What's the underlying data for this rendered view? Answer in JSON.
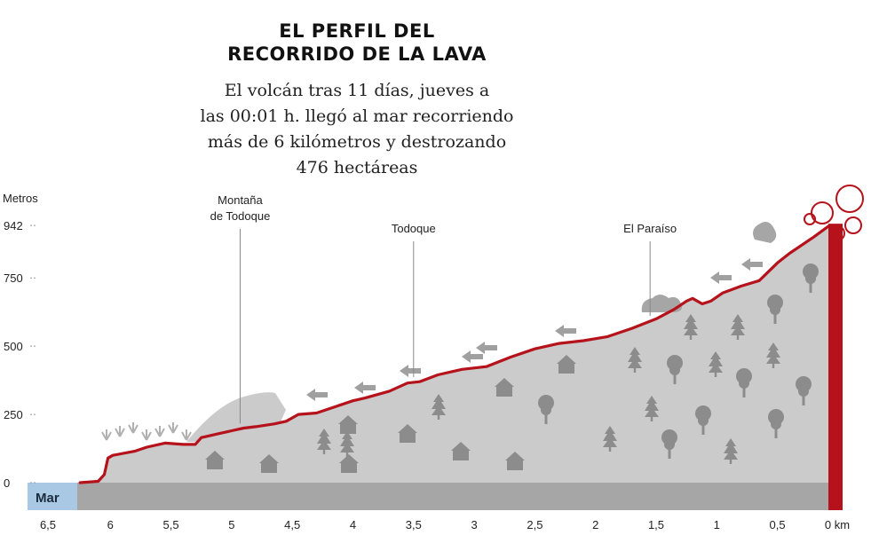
{
  "header": {
    "title_line1": "EL PERFIL DEL",
    "title_line2": "RECORRIDO DE LA LAVA",
    "subtitle_lines": [
      "El volcán tras 11 días, jueves a",
      "las 00:01 h. llegó al mar recorriendo",
      "más de 6 kilómetros y destrozando",
      "476 hectáreas"
    ]
  },
  "chart_data": {
    "type": "area",
    "xlabel": "km",
    "ylabel": "Metros",
    "x_reversed": true,
    "xlim": [
      6.5,
      0
    ],
    "ylim": [
      0,
      942
    ],
    "x_ticks": [
      "6,5",
      "6",
      "5,5",
      "5",
      "4,5",
      "4",
      "3,5",
      "3",
      "2,5",
      "2",
      "1,5",
      "1",
      "0,5",
      "0"
    ],
    "x_tick_values": [
      6.5,
      6,
      5.5,
      5,
      4.5,
      4,
      3.5,
      3,
      2.5,
      2,
      1.5,
      1,
      0.5,
      0
    ],
    "y_ticks": [
      "0",
      "250",
      "500",
      "750",
      "942"
    ],
    "y_tick_values": [
      0,
      250,
      500,
      750,
      942
    ],
    "sea_label": "Mar",
    "lava_colors": {
      "line": "#b5121b",
      "terrain": "#cbcbcb",
      "base": "#a6a6a6",
      "sea": "#a9c8e4",
      "icon": "#8c8c8c"
    },
    "series": [
      {
        "x": [
          6.25,
          6.1,
          6.05,
          6.02,
          5.98,
          5.8,
          5.7,
          5.55,
          5.4,
          5.3,
          5.25,
          5.2,
          5.1,
          5.0,
          4.9,
          4.8,
          4.65,
          4.55,
          4.45,
          4.3,
          4.1,
          4.0,
          3.9,
          3.7,
          3.55,
          3.45,
          3.3,
          3.1,
          2.9,
          2.7,
          2.5,
          2.3,
          2.1,
          1.9,
          1.7,
          1.5,
          1.35,
          1.25,
          1.2,
          1.12,
          1.05,
          0.95,
          0.8,
          0.65,
          0.5,
          0.4,
          0.2,
          0.07
        ],
        "y": [
          0,
          5,
          30,
          90,
          100,
          115,
          130,
          145,
          140,
          140,
          165,
          170,
          180,
          190,
          200,
          205,
          215,
          225,
          250,
          255,
          285,
          300,
          310,
          335,
          365,
          370,
          395,
          415,
          425,
          460,
          490,
          510,
          520,
          535,
          565,
          600,
          635,
          665,
          675,
          655,
          665,
          695,
          720,
          740,
          805,
          840,
          900,
          942
        ]
      }
    ],
    "annotations": [
      {
        "label_lines": [
          "Montaña",
          "de Todoque"
        ],
        "x": 4.93
      },
      {
        "label_lines": [
          "Todoque"
        ],
        "x": 3.5
      },
      {
        "label_lines": [
          "El Paraíso"
        ],
        "x": 1.55
      }
    ]
  }
}
